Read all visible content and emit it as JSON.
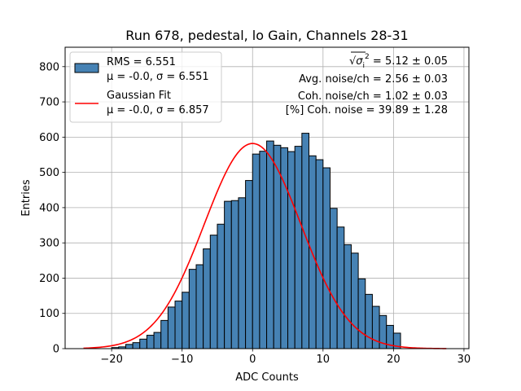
{
  "chart_data": {
    "type": "bar",
    "title": "Run 678, pedestal, lo Gain, Channels 28-31",
    "xlabel": "ADC Counts",
    "ylabel": "Entries",
    "xlim": [
      -26.6,
      30.7
    ],
    "ylim": [
      0,
      855
    ],
    "xticks": [
      -20,
      -10,
      0,
      10,
      20,
      30
    ],
    "yticks": [
      0,
      100,
      200,
      300,
      400,
      500,
      600,
      700,
      800
    ],
    "grid": true,
    "bin_width": 1,
    "bin_left_edges": [
      -20,
      -19,
      -18,
      -17,
      -16,
      -15,
      -14,
      -13,
      -12,
      -11,
      -10,
      -9,
      -8,
      -7,
      -6,
      -5,
      -4,
      -3,
      -2,
      -1,
      0,
      1,
      2,
      3,
      4,
      5,
      6,
      7,
      8,
      9,
      10,
      11,
      12,
      13,
      14,
      15,
      16,
      17,
      18,
      19,
      20
    ],
    "counts": [
      3,
      5,
      12,
      17,
      27,
      38,
      46,
      80,
      118,
      135,
      160,
      225,
      238,
      283,
      322,
      353,
      418,
      420,
      428,
      477,
      552,
      560,
      589,
      577,
      570,
      559,
      574,
      611,
      547,
      536,
      513,
      398,
      345,
      295,
      271,
      198,
      154,
      120,
      94,
      66,
      44
    ],
    "bar_color": "#4682b4",
    "legend_position": "upper left",
    "series": [
      {
        "name": "RMS = 6.551",
        "name_line2": "μ = -0.0, σ = 6.551",
        "kind": "histogram",
        "color": "#4682b4"
      },
      {
        "name": "Gaussian Fit",
        "name_line2": "μ = -0.0, σ = 6.857",
        "kind": "line",
        "color": "#ff0000",
        "mu": 0.0,
        "sigma": 6.857,
        "amplitude": 582,
        "x_range": [
          -24,
          27.5
        ]
      }
    ],
    "annotations": [
      {
        "lead": "√",
        "sym": "σ",
        "sub": "i",
        "sup": "2",
        "text": " = 5.12 ± 0.05"
      },
      {
        "text": "Avg. noise/ch = 2.56 ± 0.03"
      },
      {
        "text": "Coh. noise/ch = 1.02 ± 0.03"
      },
      {
        "text": "[%] Coh. noise = 39.89 ± 1.28"
      }
    ]
  }
}
